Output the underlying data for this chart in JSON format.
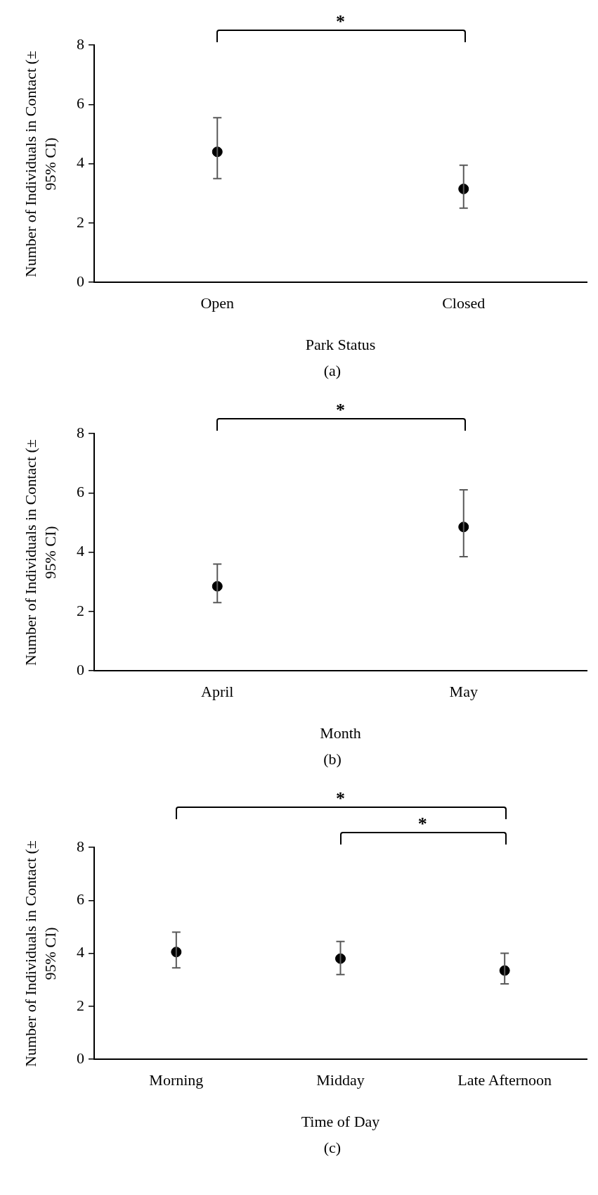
{
  "chart_data": [
    {
      "type": "scatter",
      "xlabel": "Park Status",
      "ylabel": "Number of Individuals in Contact (± 95% CI)",
      "categories": [
        "Open",
        "Closed"
      ],
      "marker": "circle",
      "ylim": [
        0,
        8
      ],
      "yticks": [
        0,
        2,
        4,
        6,
        8
      ],
      "series": [
        {
          "color": "#000000",
          "values": [
            4.4,
            3.15
          ],
          "errors": [
            [
              3.5,
              5.55
            ],
            [
              2.5,
              3.95
            ]
          ]
        }
      ],
      "annotations": [
        "*",
        "(a)"
      ]
    },
    {
      "type": "scatter",
      "xlabel": "Month",
      "ylabel": "Number of Individuals in Contact (± 95% CI)",
      "categories": [
        "April",
        "May"
      ],
      "marker": "circle",
      "ylim": [
        0,
        8
      ],
      "yticks": [
        0,
        2,
        4,
        6,
        8
      ],
      "series": [
        {
          "color": "#000000",
          "values": [
            2.85,
            4.85
          ],
          "errors": [
            [
              2.3,
              3.6
            ],
            [
              3.85,
              6.1
            ]
          ]
        }
      ],
      "annotations": [
        "*",
        "(b)"
      ]
    },
    {
      "type": "scatter",
      "xlabel": "Time of Day",
      "ylabel": "Number of Individuals in Contact (± 95% CI)",
      "categories": [
        "Morning",
        "Midday",
        "Late Afternoon"
      ],
      "marker": "circle",
      "ylim": [
        0,
        8
      ],
      "yticks": [
        0,
        2,
        4,
        6,
        8
      ],
      "series": [
        {
          "color": "#000000",
          "values": [
            4.05,
            3.8,
            3.35
          ],
          "errors": [
            [
              3.45,
              4.8
            ],
            [
              3.2,
              4.45
            ],
            [
              2.85,
              4.0
            ]
          ]
        }
      ],
      "annotations": [
        "*",
        "*",
        "(c)"
      ]
    }
  ]
}
